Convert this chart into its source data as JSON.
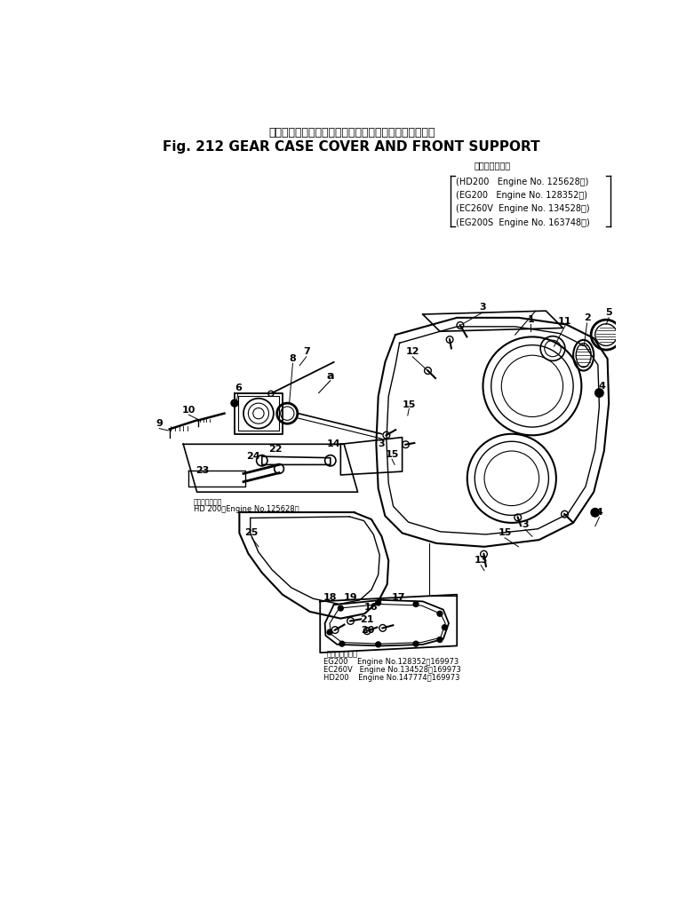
{
  "title_japanese": "ギヤー　ケース　カバー　および　フロント　サポート",
  "title_english": "Fig. 212 GEAR CASE COVER AND FRONT SUPPORT",
  "applicability_header": "適　用　号　機",
  "applicability_lines": [
    "(HD200   Engine No. 125628～)",
    "(EG200   Engine No. 128352～)",
    "(EC260V  Engine No. 134528～)",
    "(EG200S  Engine No. 163748～)"
  ],
  "hd200_note": "HD 200.　Engine No.125628～",
  "bottom_applicability_header": "適　用　号　機",
  "bottom_applicability_lines": [
    "EG200    Engine No.128352～169973",
    "EC260V   Engine No.134528～169973",
    "HD200    Engine No.147774～169973"
  ],
  "bg_color": "#ffffff",
  "text_color": "#000000",
  "figsize": [
    7.72,
    10.25
  ],
  "dpi": 100
}
